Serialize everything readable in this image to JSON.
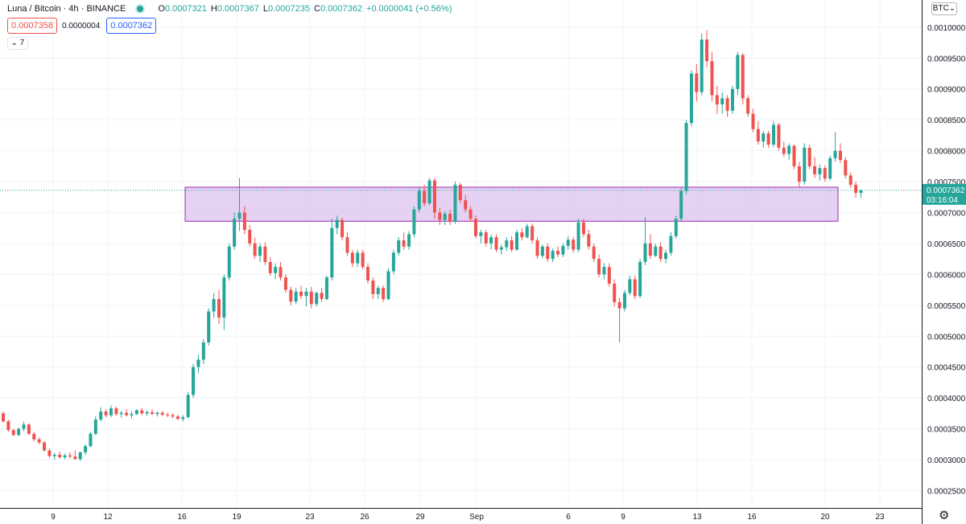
{
  "header": {
    "symbol": "Luna / Bitcoin · 4h · BINANCE",
    "o_label": "O",
    "o_value": "0.0007321",
    "h_label": "H",
    "h_value": "0.0007367",
    "l_label": "L",
    "l_value": "0.0007235",
    "c_label": "C",
    "c_value": "0.0007362",
    "change": "+0.0000041 (+0.56%)",
    "sell_price": "0.0007358",
    "spread": "0.0000004",
    "buy_price": "0.0007362",
    "collapse_label": "7",
    "currency": "BTC"
  },
  "colors": {
    "up": "#26a69a",
    "down": "#ef5350",
    "zone_fill": "#e1c9ee",
    "zone_border": "#9c27b0"
  },
  "price_label": {
    "price": "0.0007362",
    "countdown": "03:16:04"
  },
  "chart_data": {
    "type": "candlestick",
    "ylim": [
      0.000222,
      0.001044
    ],
    "y_ticks": [
      "0.0010000",
      "0.0009500",
      "0.0009000",
      "0.0008500",
      "0.0008000",
      "0.0007500",
      "0.0007000",
      "0.0006500",
      "0.0006000",
      "0.0005500",
      "0.0005000",
      "0.0004500",
      "0.0004000",
      "0.0003500",
      "0.0003000",
      "0.0002500"
    ],
    "top_partial_tick": "0.0010500",
    "x_ticks": [
      "9",
      "12",
      "16",
      "19",
      "23",
      "26",
      "29",
      "Sep",
      "6",
      "9",
      "13",
      "16",
      "20",
      "23"
    ],
    "zone": {
      "from": "16",
      "to": "20",
      "low": 0.000686,
      "high": 0.000741
    },
    "candles": [
      [
        0.000375,
        0.000378,
        0.00036,
        0.000362
      ],
      [
        0.000362,
        0.000365,
        0.000345,
        0.000348
      ],
      [
        0.000348,
        0.00035,
        0.000338,
        0.00034
      ],
      [
        0.00034,
        0.000352,
        0.000338,
        0.00035
      ],
      [
        0.00035,
        0.000362,
        0.000346,
        0.000357
      ],
      [
        0.000357,
        0.000359,
        0.00034,
        0.000342
      ],
      [
        0.000342,
        0.000345,
        0.00033,
        0.000333
      ],
      [
        0.000333,
        0.000336,
        0.000325,
        0.000328
      ],
      [
        0.000328,
        0.00033,
        0.000313,
        0.000315
      ],
      [
        0.000315,
        0.000318,
        0.000303,
        0.000306
      ],
      [
        0.000306,
        0.000311,
        0.0003,
        0.000308
      ],
      [
        0.000308,
        0.000313,
        0.000302,
        0.000304
      ],
      [
        0.000304,
        0.00031,
        0.000301,
        0.000307
      ],
      [
        0.000307,
        0.000312,
        0.000302,
        0.000305
      ],
      [
        0.000305,
        0.000315,
        0.0003,
        0.000301
      ],
      [
        0.000301,
        0.000313,
        0.000298,
        0.000312
      ],
      [
        0.000312,
        0.000325,
        0.000308,
        0.000322
      ],
      [
        0.000322,
        0.000345,
        0.00032,
        0.000342
      ],
      [
        0.000342,
        0.00037,
        0.00034,
        0.000365
      ],
      [
        0.000365,
        0.000385,
        0.000362,
        0.000378
      ],
      [
        0.000378,
        0.000382,
        0.000368,
        0.000372
      ],
      [
        0.000372,
        0.000388,
        0.000369,
        0.000383
      ],
      [
        0.000383,
        0.000386,
        0.000371,
        0.000374
      ],
      [
        0.000374,
        0.000379,
        0.000368,
        0.000376
      ],
      [
        0.000376,
        0.000382,
        0.00037,
        0.000372
      ],
      [
        0.000372,
        0.000378,
        0.000367,
        0.000374
      ],
      [
        0.000374,
        0.000382,
        0.000372,
        0.00038
      ],
      [
        0.00038,
        0.000384,
        0.000372,
        0.000375
      ],
      [
        0.000375,
        0.00038,
        0.000371,
        0.000377
      ],
      [
        0.000377,
        0.000382,
        0.000373,
        0.000374
      ],
      [
        0.000374,
        0.000378,
        0.00037,
        0.000376
      ],
      [
        0.000376,
        0.000379,
        0.000371,
        0.000373
      ],
      [
        0.000373,
        0.000376,
        0.000369,
        0.000372
      ],
      [
        0.000372,
        0.000375,
        0.000367,
        0.00037
      ],
      [
        0.00037,
        0.000373,
        0.000364,
        0.000366
      ],
      [
        0.000366,
        0.000372,
        0.000362,
        0.000369
      ],
      [
        0.000369,
        0.00041,
        0.000367,
        0.000405
      ],
      [
        0.000405,
        0.000455,
        0.0004,
        0.00045
      ],
      [
        0.00045,
        0.00047,
        0.00044,
        0.000462
      ],
      [
        0.000462,
        0.000495,
        0.000455,
        0.00049
      ],
      [
        0.00049,
        0.000545,
        0.000485,
        0.00054
      ],
      [
        0.00054,
        0.00057,
        0.00053,
        0.00056
      ],
      [
        0.00056,
        0.000575,
        0.00052,
        0.00053
      ],
      [
        0.00053,
        0.0006,
        0.00051,
        0.000595
      ],
      [
        0.000595,
        0.00065,
        0.00059,
        0.000645
      ],
      [
        0.000645,
        0.0007,
        0.00064,
        0.00069
      ],
      [
        0.00069,
        0.000756,
        0.00067,
        0.0007
      ],
      [
        0.0007,
        0.00071,
        0.000665,
        0.000672
      ],
      [
        0.000672,
        0.00068,
        0.000645,
        0.00065
      ],
      [
        0.00065,
        0.00066,
        0.000625,
        0.00063
      ],
      [
        0.00063,
        0.00065,
        0.00062,
        0.000645
      ],
      [
        0.000645,
        0.000652,
        0.000615,
        0.00062
      ],
      [
        0.00062,
        0.000628,
        0.000598,
        0.000602
      ],
      [
        0.000602,
        0.000618,
        0.000592,
        0.000612
      ],
      [
        0.000612,
        0.00062,
        0.00059,
        0.000595
      ],
      [
        0.000595,
        0.0006,
        0.00057,
        0.000575
      ],
      [
        0.000575,
        0.00058,
        0.00055,
        0.000556
      ],
      [
        0.000556,
        0.000578,
        0.000552,
        0.000572
      ],
      [
        0.000572,
        0.000582,
        0.00056,
        0.000565
      ],
      [
        0.000565,
        0.000578,
        0.000548,
        0.000572
      ],
      [
        0.000572,
        0.00058,
        0.000545,
        0.000552
      ],
      [
        0.000552,
        0.000572,
        0.000548,
        0.00057
      ],
      [
        0.00057,
        0.000578,
        0.000555,
        0.00056
      ],
      [
        0.00056,
        0.000598,
        0.000558,
        0.000595
      ],
      [
        0.000595,
        0.00069,
        0.00059,
        0.000675
      ],
      [
        0.000675,
        0.000695,
        0.000665,
        0.000688
      ],
      [
        0.000688,
        0.000692,
        0.000655,
        0.00066
      ],
      [
        0.00066,
        0.000668,
        0.00063,
        0.000635
      ],
      [
        0.000635,
        0.00064,
        0.000612,
        0.000618
      ],
      [
        0.000618,
        0.00064,
        0.000612,
        0.000635
      ],
      [
        0.000635,
        0.00064,
        0.000608,
        0.000612
      ],
      [
        0.000612,
        0.000618,
        0.000585,
        0.00059
      ],
      [
        0.00059,
        0.000595,
        0.00056,
        0.000568
      ],
      [
        0.000568,
        0.000582,
        0.00056,
        0.000578
      ],
      [
        0.000578,
        0.000582,
        0.000555,
        0.00056
      ],
      [
        0.00056,
        0.00061,
        0.000558,
        0.000605
      ],
      [
        0.000605,
        0.00064,
        0.0006,
        0.000635
      ],
      [
        0.000635,
        0.00066,
        0.00063,
        0.000655
      ],
      [
        0.000655,
        0.000668,
        0.00064,
        0.000645
      ],
      [
        0.000645,
        0.00067,
        0.00064,
        0.000665
      ],
      [
        0.000665,
        0.00071,
        0.00066,
        0.000705
      ],
      [
        0.000705,
        0.00074,
        0.0007,
        0.000735
      ],
      [
        0.000735,
        0.000745,
        0.00071,
        0.000715
      ],
      [
        0.000715,
        0.000756,
        0.000712,
        0.000752
      ],
      [
        0.000752,
        0.000756,
        0.00069,
        0.0007
      ],
      [
        0.0007,
        0.000708,
        0.00068,
        0.000688
      ],
      [
        0.000688,
        0.000702,
        0.00068,
        0.000698
      ],
      [
        0.000698,
        0.000705,
        0.00068,
        0.000685
      ],
      [
        0.000685,
        0.00075,
        0.000682,
        0.000745
      ],
      [
        0.000745,
        0.000748,
        0.000715,
        0.00072
      ],
      [
        0.00072,
        0.000728,
        0.0007,
        0.000705
      ],
      [
        0.000705,
        0.00071,
        0.000685,
        0.00069
      ],
      [
        0.00069,
        0.000695,
        0.000658,
        0.000662
      ],
      [
        0.000662,
        0.000672,
        0.00065,
        0.000668
      ],
      [
        0.000668,
        0.000672,
        0.000645,
        0.00065
      ],
      [
        0.00065,
        0.000665,
        0.00064,
        0.00066
      ],
      [
        0.00066,
        0.000665,
        0.000636,
        0.00064
      ],
      [
        0.00064,
        0.000648,
        0.000632,
        0.000644
      ],
      [
        0.000644,
        0.00066,
        0.000638,
        0.000655
      ],
      [
        0.000655,
        0.000662,
        0.000636,
        0.00064
      ],
      [
        0.00064,
        0.000672,
        0.000638,
        0.000668
      ],
      [
        0.000668,
        0.000675,
        0.000655,
        0.00066
      ],
      [
        0.00066,
        0.000682,
        0.000658,
        0.000678
      ],
      [
        0.000678,
        0.000682,
        0.00065,
        0.000655
      ],
      [
        0.000655,
        0.00066,
        0.000625,
        0.00063
      ],
      [
        0.00063,
        0.000648,
        0.000626,
        0.000645
      ],
      [
        0.000645,
        0.00065,
        0.00062,
        0.000625
      ],
      [
        0.000625,
        0.000642,
        0.00062,
        0.000638
      ],
      [
        0.000638,
        0.000645,
        0.000628,
        0.000632
      ],
      [
        0.000632,
        0.00065,
        0.000628,
        0.000646
      ],
      [
        0.000646,
        0.000662,
        0.00064,
        0.000656
      ],
      [
        0.000656,
        0.00066,
        0.000635,
        0.00064
      ],
      [
        0.00064,
        0.00069,
        0.000636,
        0.000684
      ],
      [
        0.000684,
        0.00069,
        0.00066,
        0.000665
      ],
      [
        0.000665,
        0.000672,
        0.00064,
        0.000645
      ],
      [
        0.000645,
        0.00065,
        0.00062,
        0.000625
      ],
      [
        0.000625,
        0.000632,
        0.000595,
        0.0006
      ],
      [
        0.0006,
        0.000618,
        0.000592,
        0.000612
      ],
      [
        0.000612,
        0.000618,
        0.00058,
        0.000585
      ],
      [
        0.000585,
        0.000592,
        0.000548,
        0.000555
      ],
      [
        0.000555,
        0.000562,
        0.00049,
        0.000545
      ],
      [
        0.000545,
        0.000575,
        0.00054,
        0.00057
      ],
      [
        0.00057,
        0.000598,
        0.000566,
        0.000592
      ],
      [
        0.000592,
        0.000598,
        0.00056,
        0.000565
      ],
      [
        0.000565,
        0.000625,
        0.000562,
        0.00062
      ],
      [
        0.00062,
        0.000692,
        0.000615,
        0.00065
      ],
      [
        0.00065,
        0.000665,
        0.000625,
        0.00063
      ],
      [
        0.00063,
        0.00065,
        0.000628,
        0.000645
      ],
      [
        0.000645,
        0.000652,
        0.00062,
        0.000625
      ],
      [
        0.000625,
        0.00064,
        0.000618,
        0.000635
      ],
      [
        0.000635,
        0.000668,
        0.00063,
        0.000662
      ],
      [
        0.000662,
        0.000695,
        0.000658,
        0.00069
      ],
      [
        0.00069,
        0.00074,
        0.000685,
        0.000735
      ],
      [
        0.000735,
        0.00085,
        0.00073,
        0.000845
      ],
      [
        0.000845,
        0.00093,
        0.00084,
        0.000925
      ],
      [
        0.000925,
        0.00094,
        0.00088,
        0.000895
      ],
      [
        0.000895,
        0.00099,
        0.00089,
        0.00098
      ],
      [
        0.00098,
        0.000995,
        0.000935,
        0.000945
      ],
      [
        0.000945,
        0.00096,
        0.00088,
        0.00089
      ],
      [
        0.00089,
        0.000905,
        0.00086,
        0.000875
      ],
      [
        0.000875,
        0.000895,
        0.00086,
        0.000885
      ],
      [
        0.000885,
        0.00089,
        0.000855,
        0.000865
      ],
      [
        0.000865,
        0.000905,
        0.00086,
        0.0009
      ],
      [
        0.0009,
        0.00096,
        0.00089,
        0.000955
      ],
      [
        0.000955,
        0.000958,
        0.000875,
        0.000885
      ],
      [
        0.000885,
        0.00089,
        0.000855,
        0.00086
      ],
      [
        0.00086,
        0.000868,
        0.00083,
        0.000835
      ],
      [
        0.000835,
        0.000848,
        0.00081,
        0.000815
      ],
      [
        0.000815,
        0.000832,
        0.000805,
        0.000828
      ],
      [
        0.000828,
        0.000832,
        0.000805,
        0.00081
      ],
      [
        0.00081,
        0.000848,
        0.000806,
        0.000842
      ],
      [
        0.000842,
        0.000845,
        0.0008,
        0.000805
      ],
      [
        0.000805,
        0.000815,
        0.00079,
        0.000795
      ],
      [
        0.000795,
        0.000812,
        0.000785,
        0.000808
      ],
      [
        0.000808,
        0.00081,
        0.00077,
        0.000775
      ],
      [
        0.000775,
        0.000782,
        0.000742,
        0.00075
      ],
      [
        0.00075,
        0.000812,
        0.000745,
        0.000805
      ],
      [
        0.000805,
        0.00081,
        0.00077,
        0.000775
      ],
      [
        0.000775,
        0.00079,
        0.000756,
        0.000762
      ],
      [
        0.000762,
        0.000778,
        0.000752,
        0.000772
      ],
      [
        0.000772,
        0.000776,
        0.00075,
        0.000755
      ],
      [
        0.000755,
        0.000792,
        0.000752,
        0.000788
      ],
      [
        0.000788,
        0.00083,
        0.000782,
        0.0008
      ],
      [
        0.0008,
        0.000812,
        0.00078,
        0.000785
      ],
      [
        0.000785,
        0.00079,
        0.000755,
        0.00076
      ],
      [
        0.00076,
        0.000765,
        0.00074,
        0.000745
      ],
      [
        0.000745,
        0.00075,
        0.000724,
        0.000732
      ],
      [
        0.000732,
        0.000737,
        0.000724,
        0.000736
      ]
    ]
  }
}
